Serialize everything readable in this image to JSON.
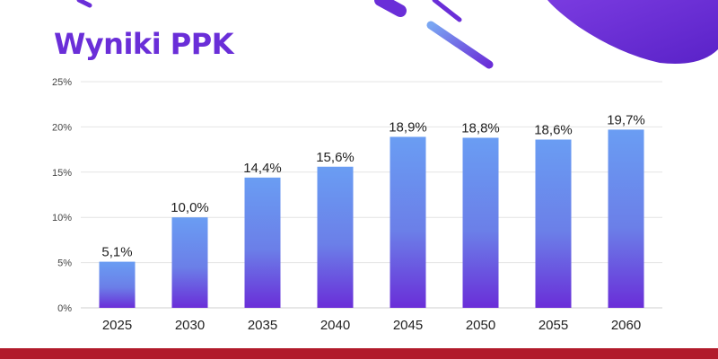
{
  "header": {
    "title": "Wyniki PPK"
  },
  "colors": {
    "title": "#6a2ed8",
    "bar_top": "#6a9df3",
    "bar_bottom": "#6a2ed8",
    "footer": "#b11a2b",
    "decor": "#6a2ed8"
  },
  "chart_data": {
    "type": "bar",
    "categories": [
      "2025",
      "2030",
      "2035",
      "2040",
      "2045",
      "2050",
      "2055",
      "2060"
    ],
    "values": [
      5.1,
      10.0,
      14.4,
      15.6,
      18.9,
      18.8,
      18.6,
      19.7
    ],
    "data_labels": [
      "5,1%",
      "10,0%",
      "14,4%",
      "15,6%",
      "18,9%",
      "18,8%",
      "18,6%",
      "19,7%"
    ],
    "y_ticks": [
      0,
      5,
      10,
      15,
      20,
      25
    ],
    "y_tick_labels": [
      "0%",
      "5%",
      "10%",
      "15%",
      "20%",
      "25%"
    ],
    "ylim": [
      0,
      25
    ],
    "title": "Wyniki PPK",
    "xlabel": "",
    "ylabel": "",
    "grid": true,
    "legend": "none"
  }
}
